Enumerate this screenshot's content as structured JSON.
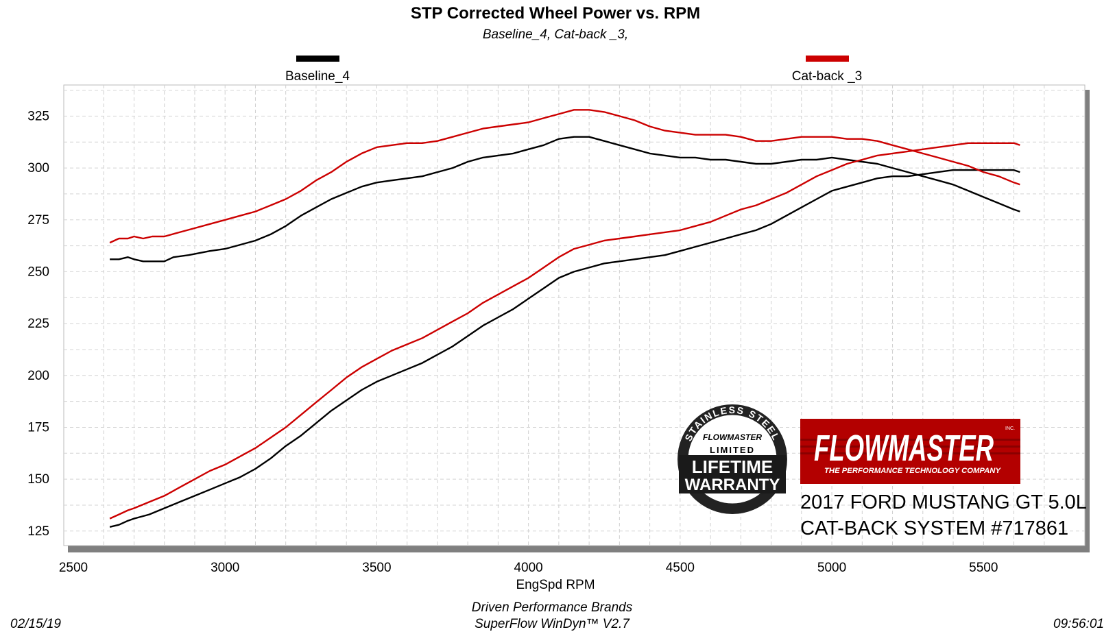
{
  "chart_data": {
    "type": "line",
    "title": "STP Corrected Wheel Power vs. RPM",
    "subtitle": "Baseline_4, Cat-back _3,",
    "xlabel": "EngSpd  RPM",
    "ylabel": "",
    "xlim": [
      2500,
      5800
    ],
    "ylim": [
      118,
      340
    ],
    "x_ticks": [
      2500,
      3000,
      3500,
      4000,
      4500,
      5000,
      5500
    ],
    "y_ticks": [
      125,
      150,
      175,
      200,
      225,
      250,
      275,
      300,
      325
    ],
    "grid": true,
    "legend_placement": "top",
    "series": [
      {
        "name": "Baseline_4",
        "color": "#000000",
        "upper_line": [
          [
            2620,
            256
          ],
          [
            2650,
            256
          ],
          [
            2680,
            257
          ],
          [
            2700,
            256
          ],
          [
            2730,
            255
          ],
          [
            2760,
            255
          ],
          [
            2800,
            255
          ],
          [
            2830,
            257
          ],
          [
            2880,
            258
          ],
          [
            2950,
            260
          ],
          [
            3000,
            261
          ],
          [
            3050,
            263
          ],
          [
            3100,
            265
          ],
          [
            3150,
            268
          ],
          [
            3200,
            272
          ],
          [
            3250,
            277
          ],
          [
            3300,
            281
          ],
          [
            3350,
            285
          ],
          [
            3400,
            288
          ],
          [
            3450,
            291
          ],
          [
            3500,
            293
          ],
          [
            3550,
            294
          ],
          [
            3600,
            295
          ],
          [
            3650,
            296
          ],
          [
            3700,
            298
          ],
          [
            3750,
            300
          ],
          [
            3800,
            303
          ],
          [
            3850,
            305
          ],
          [
            3900,
            306
          ],
          [
            3950,
            307
          ],
          [
            4000,
            309
          ],
          [
            4050,
            311
          ],
          [
            4100,
            314
          ],
          [
            4150,
            315
          ],
          [
            4200,
            315
          ],
          [
            4250,
            313
          ],
          [
            4300,
            311
          ],
          [
            4350,
            309
          ],
          [
            4400,
            307
          ],
          [
            4450,
            306
          ],
          [
            4500,
            305
          ],
          [
            4550,
            305
          ],
          [
            4600,
            304
          ],
          [
            4650,
            304
          ],
          [
            4700,
            303
          ],
          [
            4750,
            302
          ],
          [
            4800,
            302
          ],
          [
            4850,
            303
          ],
          [
            4900,
            304
          ],
          [
            4950,
            304
          ],
          [
            5000,
            305
          ],
          [
            5050,
            304
          ],
          [
            5100,
            303
          ],
          [
            5150,
            302
          ],
          [
            5200,
            300
          ],
          [
            5250,
            298
          ],
          [
            5300,
            296
          ],
          [
            5350,
            294
          ],
          [
            5400,
            292
          ],
          [
            5450,
            289
          ],
          [
            5500,
            286
          ],
          [
            5550,
            283
          ],
          [
            5600,
            280
          ],
          [
            5620,
            279
          ]
        ],
        "lower_line": [
          [
            2620,
            127
          ],
          [
            2650,
            128
          ],
          [
            2680,
            130
          ],
          [
            2700,
            131
          ],
          [
            2750,
            133
          ],
          [
            2800,
            136
          ],
          [
            2850,
            139
          ],
          [
            2900,
            142
          ],
          [
            2950,
            145
          ],
          [
            3000,
            148
          ],
          [
            3050,
            151
          ],
          [
            3100,
            155
          ],
          [
            3150,
            160
          ],
          [
            3200,
            166
          ],
          [
            3250,
            171
          ],
          [
            3300,
            177
          ],
          [
            3350,
            183
          ],
          [
            3400,
            188
          ],
          [
            3450,
            193
          ],
          [
            3500,
            197
          ],
          [
            3550,
            200
          ],
          [
            3600,
            203
          ],
          [
            3650,
            206
          ],
          [
            3700,
            210
          ],
          [
            3750,
            214
          ],
          [
            3800,
            219
          ],
          [
            3850,
            224
          ],
          [
            3900,
            228
          ],
          [
            3950,
            232
          ],
          [
            4000,
            237
          ],
          [
            4050,
            242
          ],
          [
            4100,
            247
          ],
          [
            4150,
            250
          ],
          [
            4200,
            252
          ],
          [
            4250,
            254
          ],
          [
            4300,
            255
          ],
          [
            4350,
            256
          ],
          [
            4400,
            257
          ],
          [
            4450,
            258
          ],
          [
            4500,
            260
          ],
          [
            4550,
            262
          ],
          [
            4600,
            264
          ],
          [
            4650,
            266
          ],
          [
            4700,
            268
          ],
          [
            4750,
            270
          ],
          [
            4800,
            273
          ],
          [
            4850,
            277
          ],
          [
            4900,
            281
          ],
          [
            4950,
            285
          ],
          [
            5000,
            289
          ],
          [
            5050,
            291
          ],
          [
            5100,
            293
          ],
          [
            5150,
            295
          ],
          [
            5200,
            296
          ],
          [
            5250,
            296
          ],
          [
            5300,
            297
          ],
          [
            5350,
            298
          ],
          [
            5400,
            299
          ],
          [
            5450,
            299
          ],
          [
            5500,
            299
          ],
          [
            5550,
            299
          ],
          [
            5600,
            299
          ],
          [
            5620,
            298
          ]
        ]
      },
      {
        "name": "Cat-back _3",
        "color": "#cc0000",
        "upper_line": [
          [
            2620,
            264
          ],
          [
            2650,
            266
          ],
          [
            2680,
            266
          ],
          [
            2700,
            267
          ],
          [
            2730,
            266
          ],
          [
            2760,
            267
          ],
          [
            2800,
            267
          ],
          [
            2850,
            269
          ],
          [
            2900,
            271
          ],
          [
            2950,
            273
          ],
          [
            3000,
            275
          ],
          [
            3050,
            277
          ],
          [
            3100,
            279
          ],
          [
            3150,
            282
          ],
          [
            3200,
            285
          ],
          [
            3250,
            289
          ],
          [
            3300,
            294
          ],
          [
            3350,
            298
          ],
          [
            3400,
            303
          ],
          [
            3450,
            307
          ],
          [
            3500,
            310
          ],
          [
            3550,
            311
          ],
          [
            3600,
            312
          ],
          [
            3650,
            312
          ],
          [
            3700,
            313
          ],
          [
            3750,
            315
          ],
          [
            3800,
            317
          ],
          [
            3850,
            319
          ],
          [
            3900,
            320
          ],
          [
            3950,
            321
          ],
          [
            4000,
            322
          ],
          [
            4050,
            324
          ],
          [
            4100,
            326
          ],
          [
            4150,
            328
          ],
          [
            4200,
            328
          ],
          [
            4250,
            327
          ],
          [
            4300,
            325
          ],
          [
            4350,
            323
          ],
          [
            4400,
            320
          ],
          [
            4450,
            318
          ],
          [
            4500,
            317
          ],
          [
            4550,
            316
          ],
          [
            4600,
            316
          ],
          [
            4650,
            316
          ],
          [
            4700,
            315
          ],
          [
            4750,
            313
          ],
          [
            4800,
            313
          ],
          [
            4850,
            314
          ],
          [
            4900,
            315
          ],
          [
            4950,
            315
          ],
          [
            5000,
            315
          ],
          [
            5050,
            314
          ],
          [
            5100,
            314
          ],
          [
            5150,
            313
          ],
          [
            5200,
            311
          ],
          [
            5250,
            309
          ],
          [
            5300,
            307
          ],
          [
            5350,
            305
          ],
          [
            5400,
            303
          ],
          [
            5450,
            301
          ],
          [
            5500,
            298
          ],
          [
            5550,
            296
          ],
          [
            5600,
            293
          ],
          [
            5620,
            292
          ]
        ],
        "lower_line": [
          [
            2620,
            131
          ],
          [
            2650,
            133
          ],
          [
            2680,
            135
          ],
          [
            2700,
            136
          ],
          [
            2750,
            139
          ],
          [
            2800,
            142
          ],
          [
            2850,
            146
          ],
          [
            2900,
            150
          ],
          [
            2950,
            154
          ],
          [
            3000,
            157
          ],
          [
            3050,
            161
          ],
          [
            3100,
            165
          ],
          [
            3150,
            170
          ],
          [
            3200,
            175
          ],
          [
            3250,
            181
          ],
          [
            3300,
            187
          ],
          [
            3350,
            193
          ],
          [
            3400,
            199
          ],
          [
            3450,
            204
          ],
          [
            3500,
            208
          ],
          [
            3550,
            212
          ],
          [
            3600,
            215
          ],
          [
            3650,
            218
          ],
          [
            3700,
            222
          ],
          [
            3750,
            226
          ],
          [
            3800,
            230
          ],
          [
            3850,
            235
          ],
          [
            3900,
            239
          ],
          [
            3950,
            243
          ],
          [
            4000,
            247
          ],
          [
            4050,
            252
          ],
          [
            4100,
            257
          ],
          [
            4150,
            261
          ],
          [
            4200,
            263
          ],
          [
            4250,
            265
          ],
          [
            4300,
            266
          ],
          [
            4350,
            267
          ],
          [
            4400,
            268
          ],
          [
            4450,
            269
          ],
          [
            4500,
            270
          ],
          [
            4550,
            272
          ],
          [
            4600,
            274
          ],
          [
            4650,
            277
          ],
          [
            4700,
            280
          ],
          [
            4750,
            282
          ],
          [
            4800,
            285
          ],
          [
            4850,
            288
          ],
          [
            4900,
            292
          ],
          [
            4950,
            296
          ],
          [
            5000,
            299
          ],
          [
            5050,
            302
          ],
          [
            5100,
            304
          ],
          [
            5150,
            306
          ],
          [
            5200,
            307
          ],
          [
            5250,
            308
          ],
          [
            5300,
            309
          ],
          [
            5350,
            310
          ],
          [
            5400,
            311
          ],
          [
            5450,
            312
          ],
          [
            5500,
            312
          ],
          [
            5550,
            312
          ],
          [
            5600,
            312
          ],
          [
            5620,
            311
          ]
        ]
      }
    ]
  },
  "footer": {
    "source": "Driven Performance Brands",
    "software": "SuperFlow WinDyn™  V2.7",
    "date": "02/15/19",
    "time": "09:56:01"
  },
  "logos": {
    "warranty": [
      "STAINLESS STEEL",
      "FLOWMASTER",
      "LIMITED",
      "LIFETIME",
      "WARRANTY"
    ],
    "brand": "FLOWMASTER",
    "brand_tagline": "THE PERFORMANCE TECHNOLOGY COMPANY",
    "brand_mark": "INC."
  },
  "caption": {
    "vehicle": "2017 FORD MUSTANG GT 5.0L",
    "system": "CAT-BACK SYSTEM #717861"
  }
}
